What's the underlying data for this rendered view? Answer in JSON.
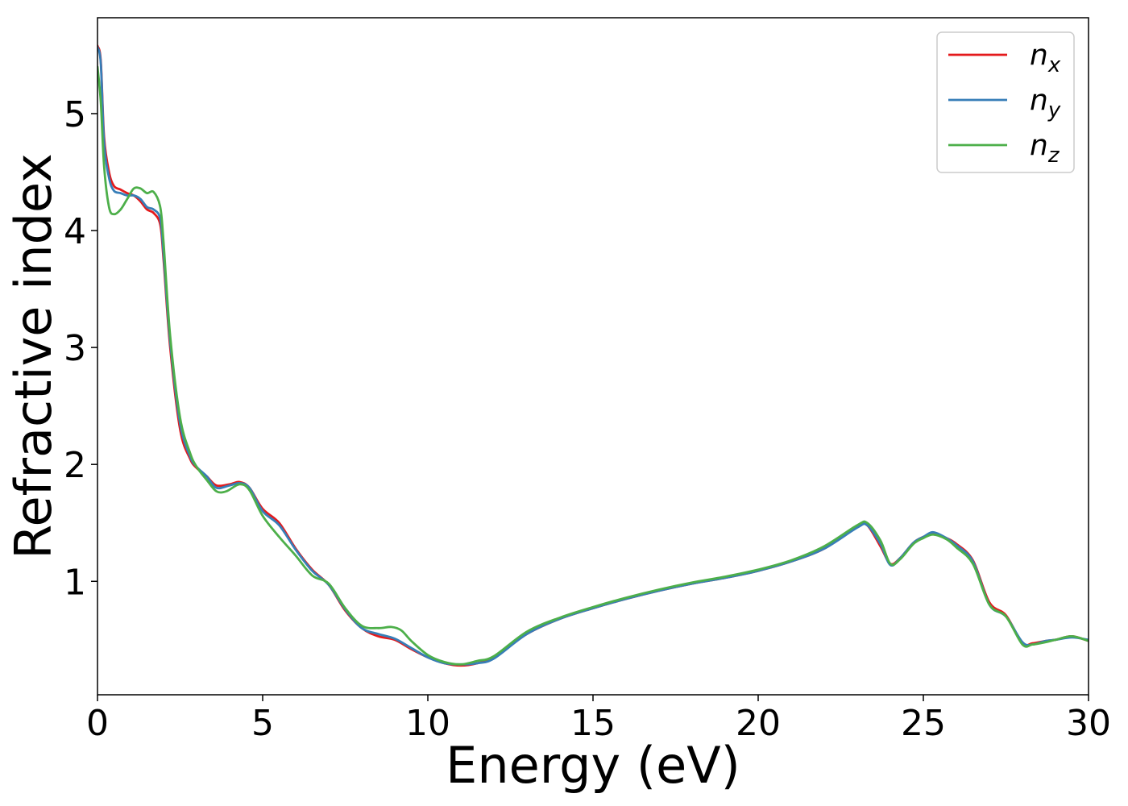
{
  "chart_data": {
    "type": "line",
    "title": "",
    "xlabel": "Energy (eV)",
    "ylabel": "Refractive index",
    "xlim": [
      0,
      30
    ],
    "ylim": [
      0.03,
      5.82
    ],
    "xticks": [
      0,
      5,
      10,
      15,
      20,
      25,
      30
    ],
    "yticks": [
      1,
      2,
      3,
      4,
      5
    ],
    "grid": false,
    "legend_position": "top-right",
    "series": [
      {
        "name": "n",
        "subscript": "x",
        "color": "#e41a1c",
        "x": [
          0,
          0.1,
          0.2,
          0.35,
          0.5,
          0.7,
          0.9,
          1.1,
          1.3,
          1.5,
          1.7,
          1.9,
          2.0,
          2.2,
          2.5,
          2.8,
          3.0,
          3.3,
          3.6,
          4.0,
          4.3,
          4.6,
          5.0,
          5.5,
          6.0,
          6.5,
          7.0,
          7.5,
          8.0,
          8.5,
          9.0,
          9.5,
          10.0,
          10.5,
          11.0,
          11.5,
          12.0,
          13.0,
          14.0,
          15.0,
          16.0,
          17.0,
          18.0,
          19.0,
          20.0,
          21.0,
          22.0,
          23.0,
          23.3,
          23.7,
          24.0,
          24.3,
          24.7,
          25.0,
          25.3,
          25.7,
          26.0,
          26.5,
          27.0,
          27.5,
          28.0,
          28.3,
          28.7,
          29.0,
          29.5,
          30.0
        ],
        "y": [
          5.58,
          5.45,
          4.8,
          4.5,
          4.38,
          4.35,
          4.32,
          4.3,
          4.25,
          4.18,
          4.15,
          4.05,
          3.75,
          3.0,
          2.3,
          2.05,
          1.97,
          1.9,
          1.82,
          1.83,
          1.85,
          1.8,
          1.62,
          1.5,
          1.28,
          1.1,
          0.97,
          0.75,
          0.6,
          0.53,
          0.5,
          0.42,
          0.35,
          0.3,
          0.28,
          0.3,
          0.35,
          0.55,
          0.68,
          0.77,
          0.85,
          0.92,
          0.98,
          1.03,
          1.09,
          1.17,
          1.28,
          1.47,
          1.48,
          1.3,
          1.15,
          1.2,
          1.33,
          1.38,
          1.41,
          1.37,
          1.32,
          1.18,
          0.82,
          0.71,
          0.47,
          0.47,
          0.49,
          0.5,
          0.53,
          0.49
        ]
      },
      {
        "name": "n",
        "subscript": "y",
        "color": "#377eb8",
        "x": [
          0,
          0.1,
          0.2,
          0.35,
          0.5,
          0.7,
          0.9,
          1.1,
          1.3,
          1.5,
          1.7,
          1.9,
          2.0,
          2.2,
          2.5,
          2.8,
          3.0,
          3.3,
          3.6,
          4.0,
          4.3,
          4.6,
          5.0,
          5.5,
          6.0,
          6.5,
          7.0,
          7.5,
          8.0,
          8.5,
          9.0,
          9.5,
          10.0,
          10.5,
          11.0,
          11.5,
          12.0,
          13.0,
          14.0,
          15.0,
          16.0,
          17.0,
          18.0,
          19.0,
          20.0,
          21.0,
          22.0,
          23.0,
          23.3,
          23.7,
          24.0,
          24.3,
          24.7,
          25.0,
          25.3,
          25.7,
          26.0,
          26.5,
          27.0,
          27.5,
          28.0,
          28.3,
          28.7,
          29.0,
          29.5,
          30.0
        ],
        "y": [
          5.57,
          5.43,
          4.75,
          4.45,
          4.34,
          4.32,
          4.3,
          4.3,
          4.27,
          4.2,
          4.18,
          4.1,
          3.8,
          3.05,
          2.35,
          2.07,
          1.98,
          1.9,
          1.8,
          1.82,
          1.84,
          1.8,
          1.6,
          1.48,
          1.27,
          1.09,
          0.97,
          0.76,
          0.6,
          0.55,
          0.51,
          0.43,
          0.35,
          0.3,
          0.29,
          0.3,
          0.34,
          0.55,
          0.68,
          0.77,
          0.85,
          0.92,
          0.98,
          1.03,
          1.09,
          1.17,
          1.28,
          1.46,
          1.48,
          1.32,
          1.14,
          1.2,
          1.33,
          1.38,
          1.42,
          1.37,
          1.31,
          1.17,
          0.8,
          0.7,
          0.48,
          0.46,
          0.49,
          0.5,
          0.52,
          0.5
        ]
      },
      {
        "name": "n",
        "subscript": "z",
        "color": "#4daf4a",
        "x": [
          0,
          0.1,
          0.2,
          0.35,
          0.5,
          0.7,
          0.9,
          1.1,
          1.3,
          1.5,
          1.7,
          1.9,
          2.0,
          2.2,
          2.5,
          2.8,
          3.0,
          3.3,
          3.6,
          3.9,
          4.3,
          4.6,
          5.0,
          5.5,
          6.0,
          6.5,
          7.0,
          7.5,
          8.0,
          8.5,
          8.9,
          9.2,
          9.5,
          10.0,
          10.5,
          11.0,
          11.5,
          12.0,
          13.0,
          14.0,
          15.0,
          16.0,
          17.0,
          18.0,
          19.0,
          20.0,
          21.0,
          22.0,
          23.0,
          23.3,
          23.7,
          24.0,
          24.3,
          24.7,
          25.0,
          25.3,
          25.7,
          26.0,
          26.5,
          27.0,
          27.5,
          28.0,
          28.3,
          28.7,
          29.0,
          29.5,
          30.0
        ],
        "y": [
          5.4,
          5.1,
          4.55,
          4.2,
          4.14,
          4.18,
          4.27,
          4.36,
          4.36,
          4.32,
          4.33,
          4.2,
          3.9,
          3.1,
          2.4,
          2.1,
          1.98,
          1.87,
          1.77,
          1.77,
          1.83,
          1.78,
          1.56,
          1.38,
          1.22,
          1.05,
          0.98,
          0.77,
          0.62,
          0.6,
          0.61,
          0.58,
          0.49,
          0.37,
          0.31,
          0.29,
          0.32,
          0.36,
          0.57,
          0.69,
          0.78,
          0.86,
          0.93,
          0.99,
          1.04,
          1.1,
          1.18,
          1.3,
          1.48,
          1.5,
          1.35,
          1.15,
          1.19,
          1.32,
          1.37,
          1.4,
          1.36,
          1.29,
          1.15,
          0.8,
          0.7,
          0.46,
          0.46,
          0.48,
          0.5,
          0.53,
          0.49
        ]
      }
    ]
  }
}
